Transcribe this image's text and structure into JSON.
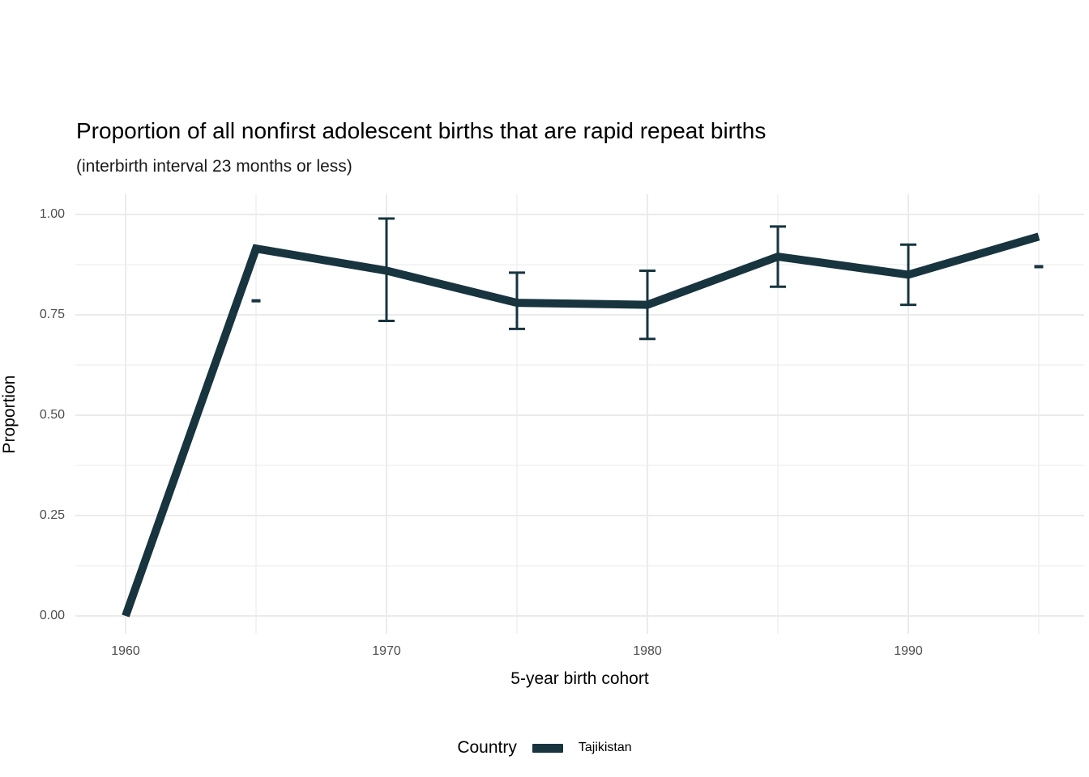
{
  "chart_data": {
    "type": "line",
    "title": "Proportion of all nonfirst adolescent births that are rapid repeat births",
    "subtitle": "(interbirth interval 23 months or less)",
    "xlabel": "5-year birth cohort",
    "ylabel": "Proportion",
    "grid": "on",
    "colors": {
      "series": "#17343f",
      "gridline": "#ebebeb",
      "tick_text": "#4d4d4d",
      "title_text": "#000000",
      "background": "#ffffff"
    },
    "x_ticks": [
      1960,
      1970,
      1980,
      1990
    ],
    "x_tick_labels": [
      "1960",
      "1970",
      "1980",
      "1990"
    ],
    "x_minor_gridlines": [
      1965,
      1975,
      1985,
      1995
    ],
    "y_ticks": [
      0,
      0.25,
      0.5,
      0.75,
      1
    ],
    "y_tick_labels": [
      "0.00",
      "0.25",
      "0.50",
      "0.75",
      "1.00"
    ],
    "y_minor_gridlines": [
      0.125,
      0.375,
      0.625,
      0.875
    ],
    "xlim": [
      1958,
      1997
    ],
    "ylim": [
      -0.046,
      1.046
    ],
    "legend": {
      "title": "Country",
      "position": "bottom",
      "entries": [
        {
          "label": "Tajikistan",
          "color": "#17343f",
          "shape": "line"
        }
      ]
    },
    "series": [
      {
        "name": "Tajikistan",
        "color": "#17343f",
        "x": [
          1960,
          1965,
          1970,
          1975,
          1980,
          1985,
          1990,
          1995
        ],
        "y": [
          0.0,
          0.915,
          0.86,
          0.78,
          0.775,
          0.895,
          0.85,
          0.945
        ],
        "error_bars": [
          {
            "x": 1965,
            "low": 0.785,
            "high": 0.785
          },
          {
            "x": 1970,
            "low": 0.735,
            "high": 0.99
          },
          {
            "x": 1975,
            "low": 0.715,
            "high": 0.855
          },
          {
            "x": 1980,
            "low": 0.69,
            "high": 0.86
          },
          {
            "x": 1985,
            "low": 0.82,
            "high": 0.97
          },
          {
            "x": 1990,
            "low": 0.775,
            "high": 0.925
          },
          {
            "x": 1995,
            "low": 0.87,
            "high": 0.87
          }
        ]
      }
    ]
  }
}
